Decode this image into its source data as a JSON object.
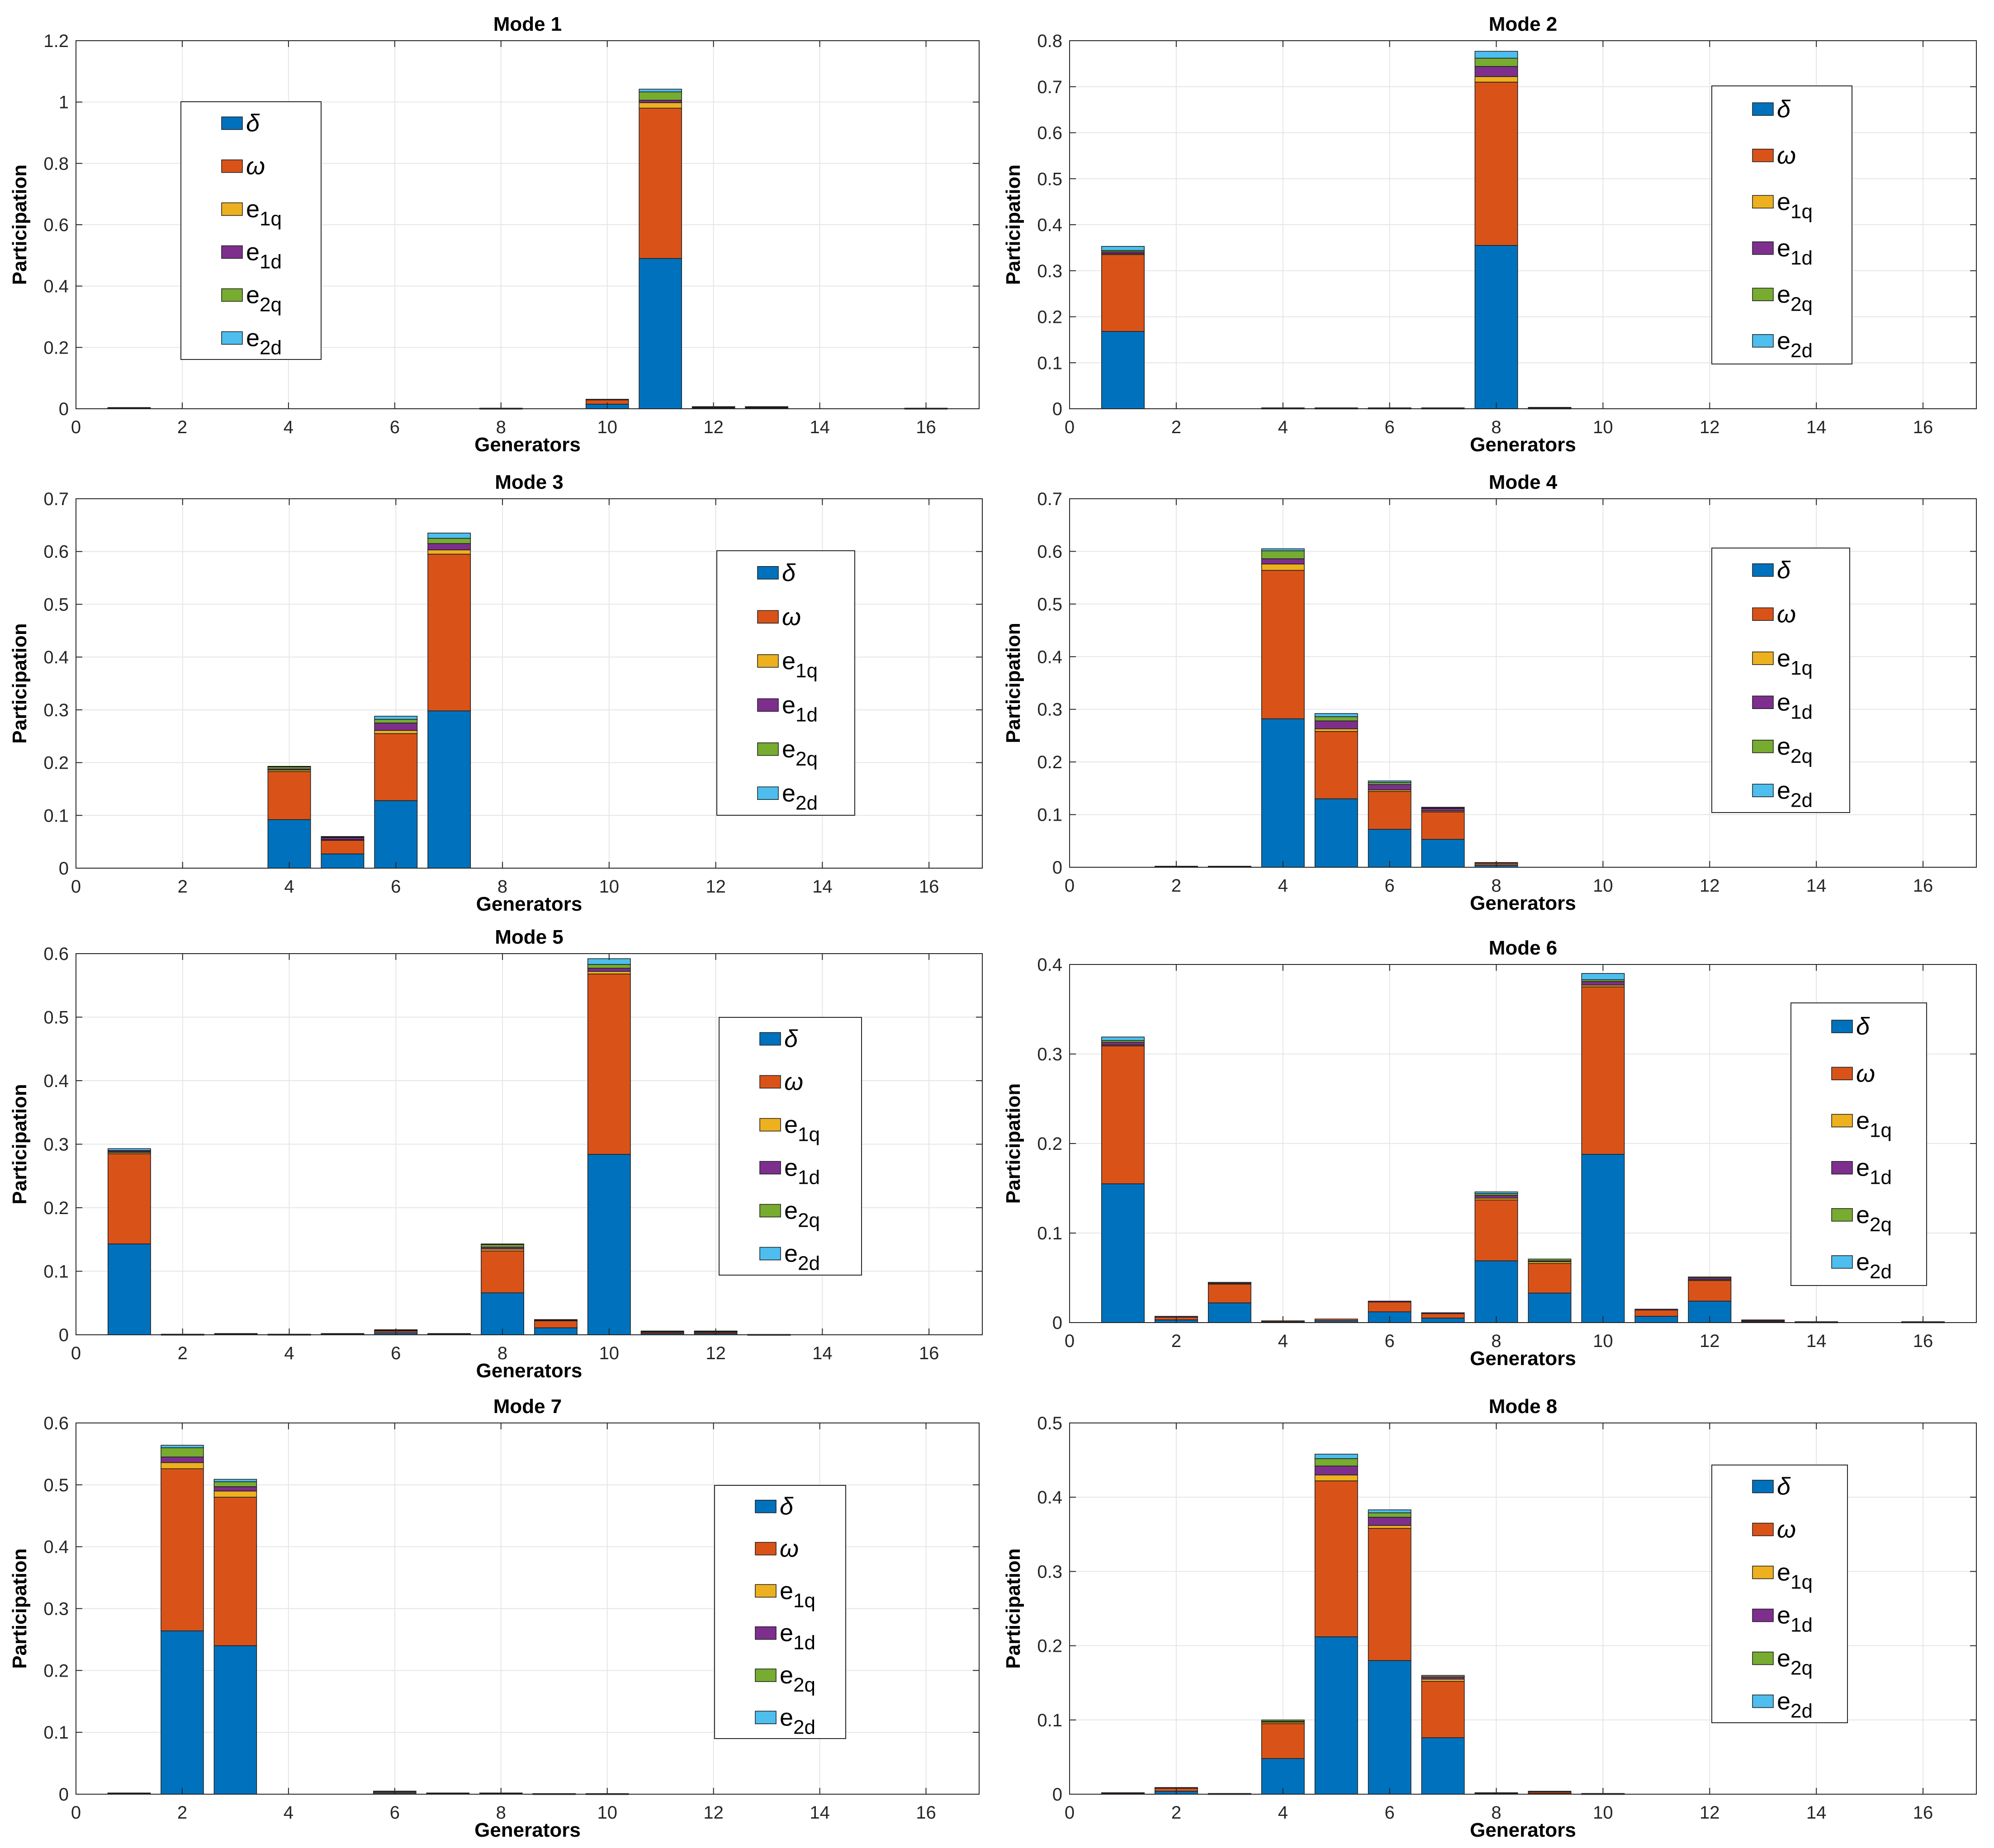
{
  "figure": {
    "xlabel": "Generators",
    "ylabel": "Participation",
    "legend": [
      {
        "label": "δ",
        "main": "δ",
        "sub": "",
        "color": "#0072BD"
      },
      {
        "label": "ω",
        "main": "ω",
        "sub": "",
        "color": "#D95319"
      },
      {
        "label": "e1q",
        "main": "e",
        "sub": "1q",
        "color": "#EDB120"
      },
      {
        "label": "e1d",
        "main": "e",
        "sub": "1d",
        "color": "#7E2F8E"
      },
      {
        "label": "e2q",
        "main": "e",
        "sub": "2q",
        "color": "#77AC30"
      },
      {
        "label": "e2d",
        "main": "e",
        "sub": "2d",
        "color": "#4DBEEE"
      }
    ],
    "x_ticks": [
      0,
      2,
      4,
      6,
      8,
      10,
      12,
      14,
      16
    ]
  },
  "chart_data": [
    {
      "type": "bar",
      "stacked": true,
      "title": "Mode 1",
      "xlabel": "Generators",
      "ylabel": "Participation",
      "xlim": [
        0,
        17
      ],
      "ylim": [
        0,
        1.2
      ],
      "yticks": [
        0,
        0.2,
        0.4,
        0.6,
        0.8,
        1,
        1.2
      ],
      "ytick_labels": [
        "0",
        "0.2",
        "0.4",
        "0.6",
        "0.8",
        "1",
        "1.2"
      ],
      "legend_position": "upper-left",
      "grid": true,
      "generators": [
        1,
        8,
        10,
        11,
        12,
        13,
        16
      ],
      "series": [
        {
          "name": "δ",
          "values": [
            0.002,
            0.001,
            0.015,
            0.49,
            0.003,
            0.003,
            0.001
          ]
        },
        {
          "name": "ω",
          "values": [
            0.002,
            0.001,
            0.015,
            0.49,
            0.003,
            0.003,
            0.001
          ]
        },
        {
          "name": "e1q",
          "values": [
            0,
            0,
            0,
            0.018,
            0,
            0,
            0
          ]
        },
        {
          "name": "e1d",
          "values": [
            0,
            0,
            0.001,
            0.008,
            0.001,
            0.001,
            0
          ]
        },
        {
          "name": "e2q",
          "values": [
            0,
            0,
            0,
            0.027,
            0,
            0,
            0
          ]
        },
        {
          "name": "e2d",
          "values": [
            0,
            0,
            0,
            0.009,
            0,
            0,
            0
          ]
        }
      ]
    },
    {
      "type": "bar",
      "stacked": true,
      "title": "Mode 2",
      "xlabel": "Generators",
      "ylabel": "Participation",
      "xlim": [
        0,
        17
      ],
      "ylim": [
        0,
        0.8
      ],
      "yticks": [
        0,
        0.1,
        0.2,
        0.3,
        0.4,
        0.5,
        0.6,
        0.7,
        0.8
      ],
      "ytick_labels": [
        "0",
        "0.1",
        "0.2",
        "0.3",
        "0.4",
        "0.5",
        "0.6",
        "0.7",
        "0.8"
      ],
      "legend_position": "upper-right",
      "grid": true,
      "generators": [
        1,
        4,
        5,
        6,
        7,
        8,
        9
      ],
      "series": [
        {
          "name": "δ",
          "values": [
            0.168,
            0.001,
            0.001,
            0.001,
            0.001,
            0.355,
            0.001
          ]
        },
        {
          "name": "ω",
          "values": [
            0.167,
            0.001,
            0.001,
            0.001,
            0.001,
            0.355,
            0.001
          ]
        },
        {
          "name": "e1q",
          "values": [
            0.002,
            0,
            0,
            0,
            0,
            0.012,
            0
          ]
        },
        {
          "name": "e1d",
          "values": [
            0.004,
            0,
            0,
            0,
            0,
            0.022,
            0.001
          ]
        },
        {
          "name": "e2q",
          "values": [
            0.003,
            0,
            0,
            0,
            0,
            0.018,
            0
          ]
        },
        {
          "name": "e2d",
          "values": [
            0.009,
            0,
            0,
            0,
            0,
            0.015,
            0
          ]
        }
      ]
    },
    {
      "type": "bar",
      "stacked": true,
      "title": "Mode 3",
      "xlabel": "Generators",
      "ylabel": "Participation",
      "xlim": [
        0,
        17
      ],
      "ylim": [
        0,
        0.7
      ],
      "yticks": [
        0,
        0.1,
        0.2,
        0.3,
        0.4,
        0.5,
        0.6,
        0.7
      ],
      "ytick_labels": [
        "0",
        "0.1",
        "0.2",
        "0.3",
        "0.4",
        "0.5",
        "0.6",
        "0.7"
      ],
      "legend_position": "upper-right",
      "grid": true,
      "generators": [
        4,
        5,
        6,
        7
      ],
      "series": [
        {
          "name": "δ",
          "values": [
            0.092,
            0.027,
            0.128,
            0.298
          ]
        },
        {
          "name": "ω",
          "values": [
            0.091,
            0.026,
            0.127,
            0.297
          ]
        },
        {
          "name": "e1q",
          "values": [
            0.003,
            0.001,
            0.006,
            0.008
          ]
        },
        {
          "name": "e1d",
          "values": [
            0.002,
            0.004,
            0.014,
            0.012
          ]
        },
        {
          "name": "e2q",
          "values": [
            0.004,
            0.001,
            0.007,
            0.01
          ]
        },
        {
          "name": "e2d",
          "values": [
            0.001,
            0.001,
            0.006,
            0.01
          ]
        }
      ]
    },
    {
      "type": "bar",
      "stacked": true,
      "title": "Mode 4",
      "xlabel": "Generators",
      "ylabel": "Participation",
      "xlim": [
        0,
        17
      ],
      "ylim": [
        0,
        0.7
      ],
      "yticks": [
        0,
        0.1,
        0.2,
        0.3,
        0.4,
        0.5,
        0.6,
        0.7
      ],
      "ytick_labels": [
        "0",
        "0.1",
        "0.2",
        "0.3",
        "0.4",
        "0.5",
        "0.6",
        "0.7"
      ],
      "legend_position": "upper-right",
      "grid": true,
      "generators": [
        2,
        3,
        4,
        5,
        6,
        7,
        8
      ],
      "series": [
        {
          "name": "δ",
          "values": [
            0.001,
            0.001,
            0.282,
            0.13,
            0.072,
            0.053,
            0.004
          ]
        },
        {
          "name": "ω",
          "values": [
            0.001,
            0.001,
            0.282,
            0.128,
            0.072,
            0.052,
            0.004
          ]
        },
        {
          "name": "e1q",
          "values": [
            0,
            0,
            0.012,
            0.005,
            0.003,
            0.002,
            0
          ]
        },
        {
          "name": "e1d",
          "values": [
            0,
            0,
            0.01,
            0.015,
            0.01,
            0.005,
            0.001
          ]
        },
        {
          "name": "e2q",
          "values": [
            0,
            0,
            0.015,
            0.008,
            0.004,
            0.001,
            0
          ]
        },
        {
          "name": "e2d",
          "values": [
            0,
            0,
            0.004,
            0.006,
            0.003,
            0.001,
            0
          ]
        }
      ]
    },
    {
      "type": "bar",
      "stacked": true,
      "title": "Mode 5",
      "xlabel": "Generators",
      "ylabel": "Participation",
      "xlim": [
        0,
        17
      ],
      "ylim": [
        0,
        0.6
      ],
      "yticks": [
        0,
        0.1,
        0.2,
        0.3,
        0.4,
        0.5,
        0.6
      ],
      "ytick_labels": [
        "0",
        "0.1",
        "0.2",
        "0.3",
        "0.4",
        "0.5",
        "0.6"
      ],
      "legend_position": "upper-right",
      "grid": true,
      "generators": [
        1,
        2,
        3,
        4,
        5,
        6,
        7,
        8,
        9,
        10,
        11,
        12,
        13
      ],
      "series": [
        {
          "name": "δ",
          "values": [
            0.143,
            0.0005,
            0.001,
            0.0005,
            0.001,
            0.003,
            0.001,
            0.066,
            0.011,
            0.284,
            0.002,
            0.002,
            0.0003
          ]
        },
        {
          "name": "ω",
          "values": [
            0.142,
            0.0005,
            0.001,
            0.0005,
            0.001,
            0.003,
            0.001,
            0.066,
            0.011,
            0.284,
            0.002,
            0.002,
            0.0003
          ]
        },
        {
          "name": "e1q",
          "values": [
            0.002,
            0,
            0,
            0,
            0,
            0.001,
            0,
            0.003,
            0.001,
            0.004,
            0.001,
            0.001,
            0
          ]
        },
        {
          "name": "e1d",
          "values": [
            0.002,
            0,
            0,
            0,
            0,
            0.001,
            0,
            0.003,
            0.001,
            0.005,
            0.001,
            0.001,
            0
          ]
        },
        {
          "name": "e2q",
          "values": [
            0.001,
            0,
            0,
            0,
            0,
            0,
            0,
            0.004,
            0,
            0.006,
            0,
            0,
            0
          ]
        },
        {
          "name": "e2d",
          "values": [
            0.003,
            0,
            0,
            0,
            0,
            0,
            0,
            0.001,
            0,
            0.009,
            0,
            0,
            0
          ]
        }
      ]
    },
    {
      "type": "bar",
      "stacked": true,
      "title": "Mode 6",
      "xlabel": "Generators",
      "ylabel": "Participation",
      "xlim": [
        0,
        17
      ],
      "ylim": [
        0,
        0.4
      ],
      "yticks": [
        0,
        0.1,
        0.2,
        0.3,
        0.4
      ],
      "ytick_labels": [
        "0",
        "0.1",
        "0.2",
        "0.3",
        "0.4"
      ],
      "legend_position": "upper-right",
      "grid": true,
      "generators": [
        1,
        2,
        3,
        4,
        5,
        6,
        7,
        8,
        9,
        10,
        11,
        12,
        13,
        14,
        16
      ],
      "series": [
        {
          "name": "δ",
          "values": [
            0.155,
            0.003,
            0.022,
            0.001,
            0.002,
            0.012,
            0.005,
            0.069,
            0.033,
            0.188,
            0.007,
            0.024,
            0.001,
            0.0005,
            0.0005
          ]
        },
        {
          "name": "ω",
          "values": [
            0.154,
            0.003,
            0.021,
            0.001,
            0.002,
            0.011,
            0.005,
            0.068,
            0.033,
            0.187,
            0.007,
            0.023,
            0.001,
            0.0005,
            0.0005
          ]
        },
        {
          "name": "e1q",
          "values": [
            0.001,
            0,
            0,
            0,
            0,
            0,
            0,
            0.002,
            0.002,
            0.002,
            0,
            0.001,
            0,
            0,
            0
          ]
        },
        {
          "name": "e1d",
          "values": [
            0.003,
            0.001,
            0.001,
            0,
            0,
            0.001,
            0.001,
            0.003,
            0.001,
            0.004,
            0.001,
            0.002,
            0.001,
            0,
            0
          ]
        },
        {
          "name": "e2q",
          "values": [
            0.002,
            0,
            0.001,
            0,
            0,
            0,
            0,
            0.002,
            0.002,
            0.002,
            0,
            0.001,
            0,
            0,
            0
          ]
        },
        {
          "name": "e2d",
          "values": [
            0.004,
            0,
            0,
            0,
            0,
            0,
            0,
            0.002,
            0,
            0.007,
            0,
            0,
            0,
            0,
            0
          ]
        }
      ]
    },
    {
      "type": "bar",
      "stacked": true,
      "title": "Mode 7",
      "xlabel": "Generators",
      "ylabel": "Participation",
      "xlim": [
        0,
        17
      ],
      "ylim": [
        0,
        0.6
      ],
      "yticks": [
        0,
        0.1,
        0.2,
        0.3,
        0.4,
        0.5,
        0.6
      ],
      "ytick_labels": [
        "0",
        "0.1",
        "0.2",
        "0.3",
        "0.4",
        "0.5",
        "0.6"
      ],
      "legend_position": "upper-right",
      "grid": true,
      "generators": [
        1,
        2,
        3,
        6,
        7,
        8,
        9,
        10
      ],
      "series": [
        {
          "name": "δ",
          "values": [
            0.001,
            0.264,
            0.24,
            0.002,
            0.001,
            0.001,
            0.0005,
            0.0005
          ]
        },
        {
          "name": "ω",
          "values": [
            0.001,
            0.262,
            0.24,
            0.002,
            0.001,
            0.001,
            0.0005,
            0.0005
          ]
        },
        {
          "name": "e1q",
          "values": [
            0,
            0.01,
            0.01,
            0,
            0,
            0,
            0,
            0
          ]
        },
        {
          "name": "e1d",
          "values": [
            0,
            0.009,
            0.007,
            0.001,
            0,
            0,
            0,
            0
          ]
        },
        {
          "name": "e2q",
          "values": [
            0,
            0.015,
            0.008,
            0,
            0,
            0,
            0,
            0
          ]
        },
        {
          "name": "e2d",
          "values": [
            0,
            0.004,
            0.004,
            0,
            0,
            0,
            0,
            0
          ]
        }
      ]
    },
    {
      "type": "bar",
      "stacked": true,
      "title": "Mode 8",
      "xlabel": "Generators",
      "ylabel": "Participation",
      "xlim": [
        0,
        17
      ],
      "ylim": [
        0,
        0.5
      ],
      "yticks": [
        0,
        0.1,
        0.2,
        0.3,
        0.4,
        0.5
      ],
      "ytick_labels": [
        "0",
        "0.1",
        "0.2",
        "0.3",
        "0.4",
        "0.5"
      ],
      "legend_position": "upper-right",
      "grid": true,
      "generators": [
        1,
        2,
        3,
        4,
        5,
        6,
        7,
        8,
        9,
        10
      ],
      "series": [
        {
          "name": "δ",
          "values": [
            0.001,
            0.004,
            0.0005,
            0.048,
            0.212,
            0.18,
            0.076,
            0.001,
            0.001,
            0.0005
          ]
        },
        {
          "name": "ω",
          "values": [
            0.001,
            0.004,
            0.0005,
            0.047,
            0.21,
            0.178,
            0.076,
            0.001,
            0.002,
            0.0005
          ]
        },
        {
          "name": "e1q",
          "values": [
            0,
            0,
            0,
            0.002,
            0.008,
            0.004,
            0.003,
            0,
            0,
            0
          ]
        },
        {
          "name": "e1d",
          "values": [
            0,
            0.001,
            0,
            0.001,
            0.012,
            0.011,
            0.003,
            0,
            0.001,
            0
          ]
        },
        {
          "name": "e2q",
          "values": [
            0,
            0,
            0,
            0.002,
            0.01,
            0.006,
            0.002,
            0,
            0,
            0
          ]
        },
        {
          "name": "e2d",
          "values": [
            0,
            0,
            0,
            0,
            0.006,
            0.004,
            0,
            0,
            0,
            0
          ]
        }
      ]
    }
  ]
}
